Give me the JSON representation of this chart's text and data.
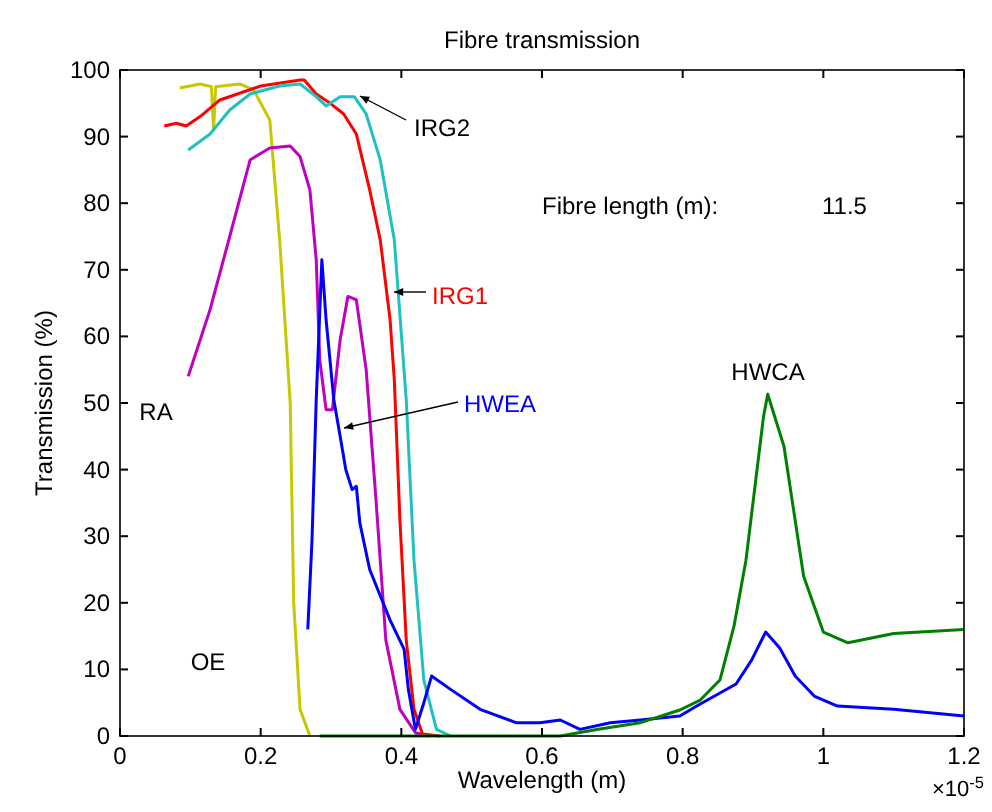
{
  "chart_data": {
    "type": "line",
    "title": "Fibre transmission",
    "xlabel": "Wavelength (m)",
    "ylabel": "Transmission (%)",
    "xlim": [
      0,
      1.2
    ],
    "xticks": [
      0,
      0.2,
      0.4,
      0.6,
      0.8,
      1,
      1.2
    ],
    "ylim": [
      0,
      100
    ],
    "yticks": [
      0,
      10,
      20,
      30,
      40,
      50,
      60,
      70,
      80,
      90,
      100
    ],
    "grid": false,
    "marker": "none",
    "line_style": "solid",
    "annotations": [
      "×10$^{-5}$",
      "Fibre length (m):",
      "11.5"
    ],
    "series": [
      {
        "name": "OE",
        "color": "#c8c800",
        "x": [
          0.085,
          0.114,
          0.13,
          0.133,
          0.136,
          0.17,
          0.19,
          0.213,
          0.227,
          0.242,
          0.247,
          0.256,
          0.27
        ],
        "values": [
          97.3,
          97.9,
          97.5,
          91,
          97.5,
          97.9,
          97,
          92.5,
          74.5,
          50,
          20,
          4,
          0
        ]
      },
      {
        "name": "RA",
        "color": "#c000c0",
        "x": [
          0.097,
          0.128,
          0.156,
          0.185,
          0.213,
          0.242,
          0.256,
          0.27,
          0.279,
          0.284,
          0.293,
          0.302,
          0.313,
          0.324,
          0.336,
          0.35,
          0.364,
          0.378,
          0.398,
          0.42,
          0.44
        ],
        "values": [
          54,
          64,
          75,
          86.5,
          88.3,
          88.6,
          87,
          82,
          71.5,
          56.5,
          49,
          49,
          59.5,
          66,
          65.5,
          55,
          35.4,
          14.4,
          4,
          0.5,
          0
        ]
      },
      {
        "name": "IRG1",
        "color": "#ff0000",
        "x": [
          0.063,
          0.08,
          0.094,
          0.114,
          0.142,
          0.2,
          0.256,
          0.262,
          0.279,
          0.299,
          0.318,
          0.336,
          0.355,
          0.37,
          0.384,
          0.39,
          0.398,
          0.407,
          0.418,
          0.43,
          0.455
        ],
        "values": [
          91.6,
          92,
          91.6,
          93,
          95.5,
          97.6,
          98.5,
          98.5,
          96.4,
          95,
          93.4,
          90.4,
          82,
          74.5,
          62.5,
          53.5,
          32.4,
          14.4,
          4,
          0.3,
          0
        ]
      },
      {
        "name": "IRG2",
        "color": "#20c0c0",
        "x": [
          0.097,
          0.128,
          0.156,
          0.185,
          0.227,
          0.256,
          0.279,
          0.293,
          0.313,
          0.333,
          0.35,
          0.37,
          0.39,
          0.407,
          0.418,
          0.432,
          0.45,
          0.47
        ],
        "values": [
          88,
          90.4,
          94,
          96.4,
          97.6,
          97.9,
          96,
          94.6,
          96,
          96,
          93.4,
          86.5,
          74.5,
          50.5,
          26.4,
          8.4,
          1,
          0
        ]
      },
      {
        "name": "HWEA",
        "color": "#0000ff",
        "x": [
          0.267,
          0.273,
          0.279,
          0.287,
          0.293,
          0.304,
          0.313,
          0.321,
          0.33,
          0.336,
          0.341,
          0.355,
          0.384,
          0.404,
          0.41,
          0.42,
          0.432,
          0.443,
          0.47,
          0.512,
          0.563,
          0.597,
          0.626,
          0.654,
          0.697,
          0.74,
          0.796,
          0.825,
          0.876,
          0.898,
          0.918,
          0.938,
          0.96,
          0.987,
          1.02,
          1.1,
          1.2
        ],
        "values": [
          16,
          29.4,
          50.5,
          71.5,
          62.5,
          50.5,
          45,
          40,
          37,
          37.5,
          32,
          25,
          17.4,
          13,
          7,
          1,
          5,
          9,
          7,
          4,
          2,
          2,
          2.4,
          1,
          2,
          2.4,
          3,
          4.8,
          7.8,
          11.4,
          15.6,
          13.2,
          9,
          6,
          4.5,
          4,
          3
        ]
      },
      {
        "name": "HWCA",
        "color": "#008000",
        "x": [
          0.284,
          0.626,
          0.68,
          0.74,
          0.796,
          0.825,
          0.853,
          0.873,
          0.89,
          0.915,
          0.921,
          0.944,
          0.972,
          1,
          1.035,
          1.1,
          1.2
        ],
        "values": [
          0,
          0,
          1,
          2,
          3.9,
          5.4,
          8.4,
          16.5,
          26.4,
          48,
          51.3,
          43.5,
          24,
          15.6,
          14,
          15.4,
          16
        ]
      }
    ]
  }
}
